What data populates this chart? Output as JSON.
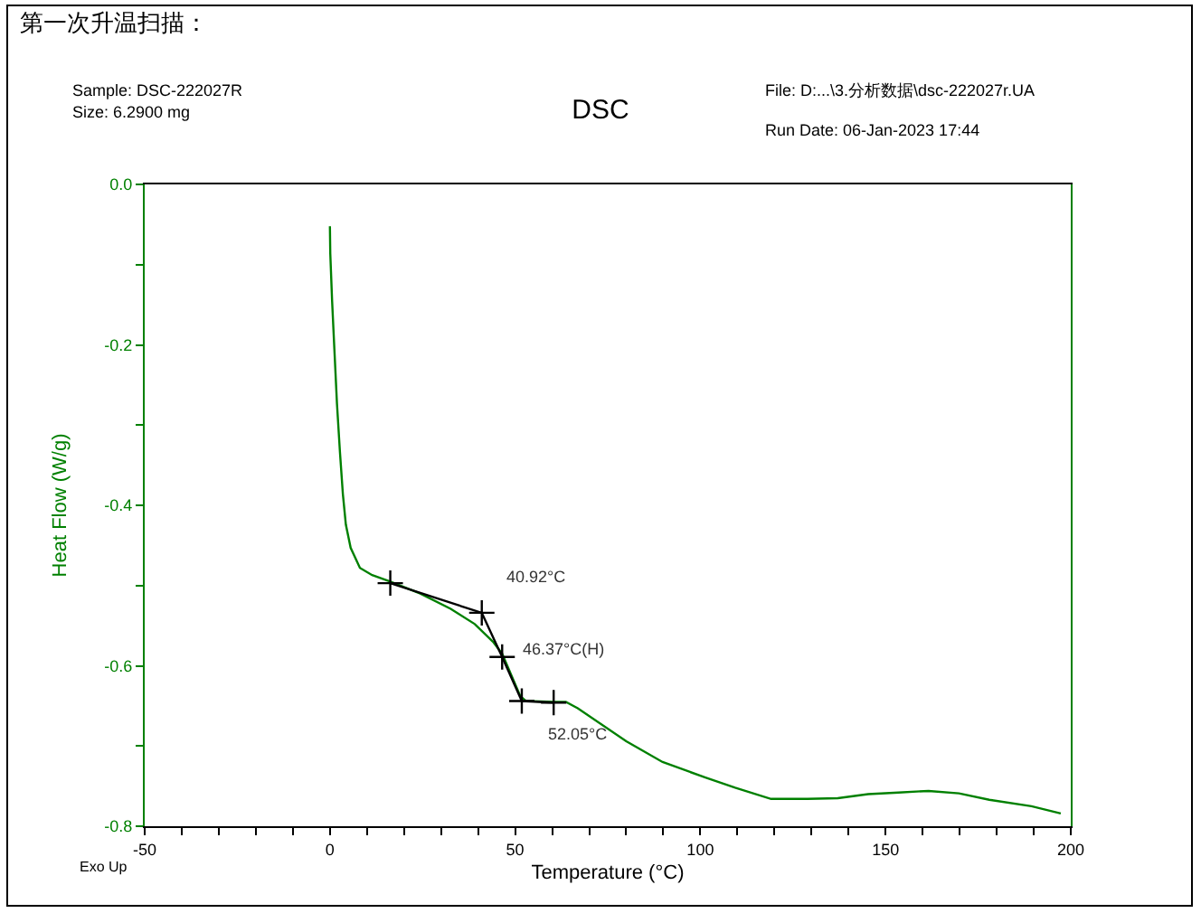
{
  "chart_data": {
    "type": "line",
    "title": "DSC",
    "xlabel": "Temperature (°C)",
    "ylabel": "Heat Flow (W/g)",
    "annotations": [
      "第一次升温扫描：",
      "Sample: DSC-222027R",
      "Size: 6.2900 mg",
      "File: D:...\\3.分析数据\\dsc-222027r.UA",
      "Run Date: 06-Jan-2023 17:44",
      "Exo Up",
      {
        "text": "40.92°C",
        "x": 40.92,
        "y": -0.534
      },
      {
        "text": "46.37°C(H)",
        "x": 46.37,
        "y": -0.589
      },
      {
        "text": "52.05°C",
        "x": 52.05,
        "y": -0.644
      }
    ],
    "series": [
      {
        "color": "#008000",
        "marker": "none",
        "x": [
          0,
          0.1,
          0.6,
          1.2,
          1.9,
          2.7,
          3.5,
          4.3,
          5.6,
          8.1,
          11.4,
          16.3,
          24.4,
          32.6,
          39.1,
          44.0,
          46.5,
          48.9,
          51.4,
          53.0,
          60.4,
          63.7,
          66.9,
          80.0,
          89.8,
          101.2,
          109.4,
          119.1,
          128.9,
          137.1,
          145.3,
          153.5,
          161.6,
          169.8,
          178.0,
          189.4,
          197.3
        ],
        "values": [
          -0.052,
          -0.086,
          -0.146,
          -0.205,
          -0.273,
          -0.333,
          -0.386,
          -0.424,
          -0.453,
          -0.478,
          -0.487,
          -0.495,
          -0.51,
          -0.529,
          -0.548,
          -0.57,
          -0.585,
          -0.611,
          -0.638,
          -0.644,
          -0.645,
          -0.645,
          -0.653,
          -0.694,
          -0.72,
          -0.739,
          -0.752,
          -0.766,
          -0.766,
          -0.765,
          -0.76,
          -0.758,
          -0.756,
          -0.759,
          -0.767,
          -0.775,
          -0.784
        ]
      },
      {
        "color": "#000000",
        "marker": "cross",
        "x": [
          16.3,
          41.0,
          46.5,
          51.8,
          60.4
        ],
        "values": [
          -0.497,
          -0.534,
          -0.589,
          -0.644,
          -0.646
        ]
      }
    ],
    "xlim": [
      -50,
      200
    ],
    "xticks": [
      -50,
      {
        "value": -40,
        "label": null
      },
      {
        "value": -30,
        "label": null
      },
      {
        "value": -20,
        "label": null
      },
      {
        "value": -10,
        "label": null
      },
      0,
      {
        "value": 10,
        "label": null
      },
      {
        "value": 20,
        "label": null
      },
      {
        "value": 30,
        "label": null
      },
      {
        "value": 40,
        "label": null
      },
      50,
      {
        "value": 60,
        "label": null
      },
      {
        "value": 70,
        "label": null
      },
      {
        "value": 80,
        "label": null
      },
      {
        "value": 90,
        "label": null
      },
      100,
      {
        "value": 110,
        "label": null
      },
      {
        "value": 120,
        "label": null
      },
      {
        "value": 130,
        "label": null
      },
      {
        "value": 140,
        "label": null
      },
      150,
      {
        "value": 160,
        "label": null
      },
      {
        "value": 170,
        "label": null
      },
      {
        "value": 180,
        "label": null
      },
      {
        "value": 190,
        "label": null
      },
      200
    ],
    "ylim": [
      -0.8,
      0.0
    ],
    "yticks": [
      {
        "value": -0.8,
        "label": "-0.8"
      },
      {
        "value": -0.7,
        "label": null
      },
      {
        "value": -0.6,
        "label": "-0.6"
      },
      {
        "value": -0.5,
        "label": null
      },
      {
        "value": -0.4,
        "label": "-0.4"
      },
      {
        "value": -0.3,
        "label": null
      },
      {
        "value": -0.2,
        "label": "-0.2"
      },
      {
        "value": -0.1,
        "label": null
      },
      {
        "value": 0.0,
        "label": "0.0"
      }
    ],
    "line_style": "solid"
  }
}
